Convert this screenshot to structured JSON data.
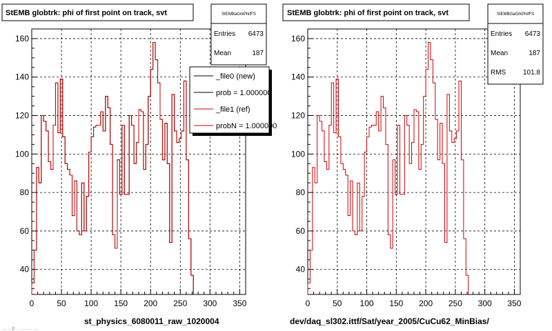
{
  "chart_data": [
    {
      "type": "histogram-step",
      "title": "StEMB globtrk: phi of first point on track, svt",
      "xlabel": "st_physics_6080011_raw_1020004",
      "ylabel": "",
      "xlim": [
        0,
        360
      ],
      "ylim": [
        27,
        165
      ],
      "grid": true,
      "x_ticks": [
        0,
        50,
        100,
        150,
        200,
        250,
        300,
        350
      ],
      "y_ticks": [
        40,
        60,
        80,
        100,
        120,
        140,
        160
      ],
      "bin_width": 4,
      "series": [
        {
          "name": "_file0 (new)",
          "color": "#000000",
          "values": [
            33,
            50,
            93,
            85,
            120,
            117,
            112,
            96,
            92,
            115,
            137,
            111,
            139,
            109,
            95,
            92,
            89,
            68,
            86,
            60,
            58,
            85,
            60,
            78,
            101,
            109,
            114,
            115,
            115,
            122,
            112,
            130,
            124,
            105,
            58,
            51,
            97,
            79,
            115,
            79,
            79,
            120,
            115,
            95,
            106,
            123,
            122,
            92,
            105,
            130,
            144,
            158,
            149,
            137,
            118,
            97,
            116,
            95,
            54,
            131,
            112,
            106,
            108,
            112,
            138,
            97,
            56,
            37
          ]
        },
        {
          "name": "_file1 (ref)",
          "color": "#cc0000",
          "values": [
            33,
            50,
            93,
            85,
            120,
            117,
            112,
            96,
            92,
            115,
            137,
            111,
            139,
            109,
            95,
            92,
            89,
            68,
            86,
            60,
            58,
            85,
            60,
            78,
            101,
            109,
            114,
            115,
            115,
            122,
            112,
            130,
            124,
            105,
            58,
            51,
            97,
            79,
            115,
            79,
            79,
            120,
            115,
            95,
            106,
            123,
            122,
            92,
            105,
            130,
            144,
            158,
            149,
            137,
            118,
            97,
            116,
            95,
            54,
            131,
            112,
            106,
            108,
            112,
            138,
            97,
            56,
            37
          ]
        }
      ],
      "stats": {
        "label": "StEMBaGrkPhifFS",
        "entries_label": "Entries",
        "entries": "6473",
        "mean_label": "Mean",
        "mean": "187"
      },
      "legend": [
        {
          "label": "_file0 (new)",
          "color": "#000000"
        },
        {
          "label": "prob = 1.000000",
          "color": "#000000"
        },
        {
          "label": "_file1 (ref)",
          "color": "#cc0000"
        },
        {
          "label": "probN = 1.000000",
          "color": "#cc0000"
        }
      ]
    },
    {
      "type": "histogram-step",
      "title": "StEMB globtrk: phi of first point on track, svt",
      "xlabel": "dev/daq_sl302.ittf/Sat/year_2005/CuCu62_MinBias/",
      "ylabel": "",
      "xlim": [
        0,
        360
      ],
      "ylim": [
        27,
        165
      ],
      "grid": true,
      "x_ticks": [
        0,
        50,
        100,
        150,
        200,
        250,
        300,
        350
      ],
      "y_ticks": [
        40,
        60,
        80,
        100,
        120,
        140,
        160
      ],
      "bin_width": 4,
      "series": [
        {
          "name": "",
          "color": "#cc0000",
          "values": [
            33,
            50,
            93,
            85,
            120,
            117,
            112,
            96,
            92,
            115,
            137,
            111,
            139,
            109,
            95,
            92,
            89,
            68,
            86,
            60,
            58,
            85,
            60,
            78,
            101,
            109,
            114,
            115,
            115,
            122,
            112,
            130,
            124,
            105,
            58,
            51,
            97,
            79,
            115,
            79,
            79,
            120,
            115,
            95,
            106,
            123,
            122,
            92,
            105,
            130,
            144,
            158,
            149,
            137,
            118,
            97,
            116,
            95,
            54,
            131,
            112,
            106,
            108,
            112,
            138,
            97,
            56,
            37
          ]
        }
      ],
      "stats": {
        "label": "StEMBGaGrkPhifFS",
        "entries_label": "Entries",
        "entries": "6473",
        "mean_label": "Mean",
        "mean": "187",
        "rms_label": "RMS",
        "rms": "101.8"
      }
    }
  ],
  "footer_text": "... ...p . . ........ ...."
}
